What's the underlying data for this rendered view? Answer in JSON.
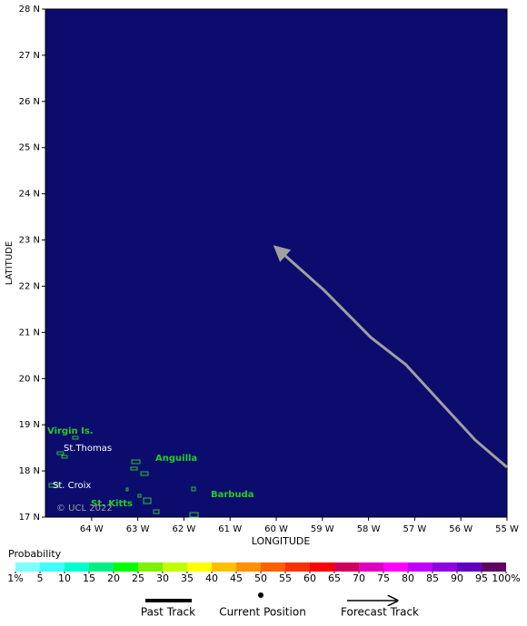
{
  "chart_data": {
    "type": "track",
    "x_label": "LONGITUDE",
    "y_label": "LATITUDE",
    "xlim": [
      -65,
      -55
    ],
    "ylim": [
      17,
      28
    ],
    "xticks": [
      {
        "value": -64,
        "label": "64 W"
      },
      {
        "value": -63,
        "label": "63 W"
      },
      {
        "value": -62,
        "label": "62 W"
      },
      {
        "value": -61,
        "label": "61 W"
      },
      {
        "value": -60,
        "label": "60 W"
      },
      {
        "value": -59,
        "label": "59 W"
      },
      {
        "value": -58,
        "label": "58 W"
      },
      {
        "value": -57,
        "label": "57 W"
      },
      {
        "value": -56,
        "label": "56 W"
      },
      {
        "value": -55,
        "label": "55 W"
      }
    ],
    "yticks": [
      {
        "value": 17,
        "label": "17 N"
      },
      {
        "value": 18,
        "label": "18 N"
      },
      {
        "value": 19,
        "label": "19 N"
      },
      {
        "value": 20,
        "label": "20 N"
      },
      {
        "value": 21,
        "label": "21 N"
      },
      {
        "value": 22,
        "label": "22 N"
      },
      {
        "value": 23,
        "label": "23 N"
      },
      {
        "value": 24,
        "label": "24 N"
      },
      {
        "value": 25,
        "label": "25 N"
      },
      {
        "value": 26,
        "label": "26 N"
      },
      {
        "value": 27,
        "label": "27 N"
      },
      {
        "value": 28,
        "label": "28 N"
      }
    ],
    "series": [
      {
        "name": "Forecast Track",
        "color": "#a0a0a0",
        "x": [
          -55.0,
          -55.69,
          -57.19,
          -57.95,
          -58.96,
          -60.02
        ],
        "values": [
          18.08,
          18.67,
          20.3,
          20.89,
          21.91,
          22.85
        ]
      }
    ],
    "legend": [
      {
        "name": "Past Track",
        "color": "#000000"
      },
      {
        "name": "Current Position",
        "color": "#000000"
      }
    ],
    "annotations": [
      "Virgin Is.",
      "St.Thomas",
      "Anguilla",
      "St. Croix",
      "St. Kitts",
      "Barbuda",
      "© UCL 2022"
    ],
    "colorbar": {
      "title": "Probability",
      "colors": [
        "#80ffff",
        "#40ffff",
        "#00ffd0",
        "#00f080",
        "#00ff00",
        "#80f000",
        "#c0ff00",
        "#ffff00",
        "#ffc000",
        "#ff9000",
        "#ff6000",
        "#ff3000",
        "#ff0000",
        "#d00060",
        "#e000c0",
        "#ff00ff",
        "#c000ff",
        "#9000e0",
        "#6000c0",
        "#600060"
      ],
      "ticks": [
        {
          "value": 1,
          "label": "1%"
        },
        5,
        10,
        15,
        20,
        25,
        30,
        35,
        40,
        45,
        50,
        55,
        60,
        65,
        70,
        75,
        80,
        85,
        90,
        95,
        {
          "value": 100,
          "label": "100%"
        }
      ]
    }
  }
}
